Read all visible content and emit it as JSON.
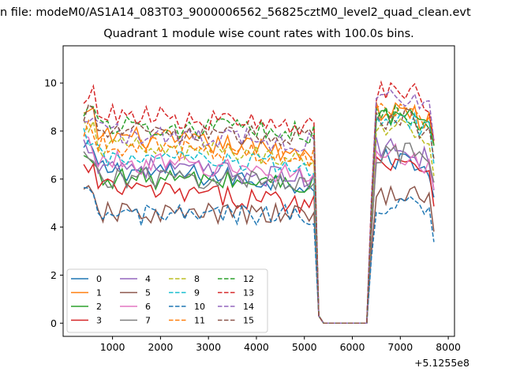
{
  "figure": {
    "suptitle": "n file: modeM0/AS1A14_083T03_9000006562_56825cztM0_level2_quad_clean.evt",
    "title": "Quadrant 1 module wise count rates with 100.0s bins."
  },
  "chart_data": {
    "type": "line",
    "title": "Quadrant 1 module wise count rates with 100.0s bins.",
    "xlabel": "",
    "ylabel": "",
    "x_offset_label": "+5.1255e8",
    "xlim": [
      -30,
      8130
    ],
    "ylim": [
      -0.55,
      11.55
    ],
    "x_ticks": [
      1000,
      2000,
      3000,
      4000,
      5000,
      6000,
      7000,
      8000
    ],
    "y_ticks": [
      0,
      2,
      4,
      6,
      8,
      10
    ],
    "grid": false,
    "legend": {
      "location": "lower-left",
      "columns": 4
    },
    "series": [
      {
        "name": "0",
        "color": "#1f77b4",
        "dash": "solid",
        "a_level": 6.5,
        "b_level": 6.8,
        "a_end": 5.8
      },
      {
        "name": "1",
        "color": "#ff7f0e",
        "dash": "solid",
        "a_level": 7.9,
        "b_level": 8.8,
        "a_end": 7.1
      },
      {
        "name": "2",
        "color": "#2ca02c",
        "dash": "solid",
        "a_level": 6.1,
        "b_level": 8.6,
        "a_end": 5.8
      },
      {
        "name": "3",
        "color": "#d62728",
        "dash": "solid",
        "a_level": 5.7,
        "b_level": 6.8,
        "a_end": 5.0
      },
      {
        "name": "4",
        "color": "#9467bd",
        "dash": "solid",
        "a_level": 6.7,
        "b_level": 7.3,
        "a_end": 6.0
      },
      {
        "name": "5",
        "color": "#8c564b",
        "dash": "solid",
        "a_level": 4.6,
        "b_level": 5.4,
        "a_end": 4.5
      },
      {
        "name": "6",
        "color": "#e377c2",
        "dash": "solid",
        "a_level": 6.8,
        "b_level": 7.0,
        "a_end": 6.2
      },
      {
        "name": "7",
        "color": "#7f7f7f",
        "dash": "solid",
        "a_level": 6.1,
        "b_level": 7.1,
        "a_end": 5.9
      },
      {
        "name": "8",
        "color": "#bcbd22",
        "dash": "dashed",
        "a_level": 7.4,
        "b_level": 8.1,
        "a_end": 6.9
      },
      {
        "name": "9",
        "color": "#17becf",
        "dash": "dashed",
        "a_level": 7.0,
        "b_level": 8.4,
        "a_end": 6.5
      },
      {
        "name": "10",
        "color": "#1f77b4",
        "dash": "dashed",
        "a_level": 4.5,
        "b_level": 5.0,
        "a_end": 4.5
      },
      {
        "name": "11",
        "color": "#ff7f0e",
        "dash": "dashed",
        "a_level": 7.5,
        "b_level": 9.0,
        "a_end": 6.9
      },
      {
        "name": "12",
        "color": "#2ca02c",
        "dash": "dashed",
        "a_level": 8.3,
        "b_level": 8.7,
        "a_end": 7.9
      },
      {
        "name": "13",
        "color": "#d62728",
        "dash": "dashed",
        "a_level": 8.8,
        "b_level": 9.6,
        "a_end": 8.1
      },
      {
        "name": "14",
        "color": "#9467bd",
        "dash": "dashed",
        "a_level": 8.0,
        "b_level": 9.4,
        "a_end": 7.5
      },
      {
        "name": "15",
        "color": "#8c564b",
        "dash": "dashed",
        "a_level": 8.0,
        "b_level": 8.5,
        "a_end": 7.7
      }
    ]
  }
}
